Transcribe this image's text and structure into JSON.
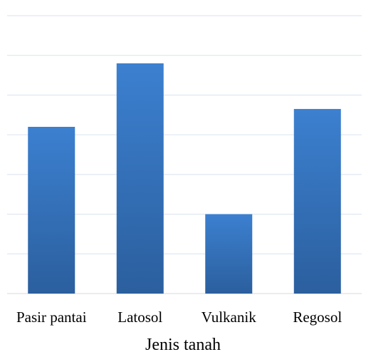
{
  "chart_data": {
    "type": "bar",
    "categories": [
      "Pasir pantai",
      "Latosol",
      "Vulkanik",
      "Regosol"
    ],
    "values": [
      42,
      58,
      20,
      46.5
    ],
    "xlabel": "Jenis tanah",
    "ylabel": "",
    "ylim": [
      0,
      70
    ],
    "grid": true,
    "legend": "none",
    "colors": {
      "bar_top": "#3c80d0",
      "bar_bottom": "#2b5f9e",
      "grid": "#d9e2f0",
      "text": "#000000"
    }
  }
}
